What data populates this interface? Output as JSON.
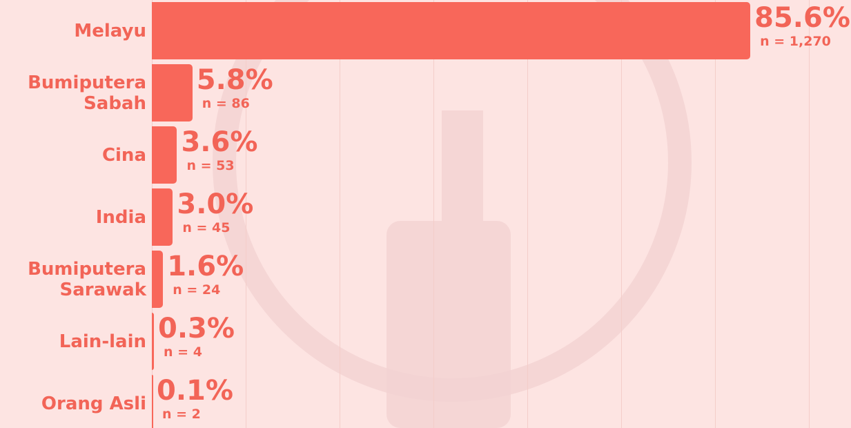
{
  "chart_data": {
    "type": "bar",
    "orientation": "horizontal",
    "categories": [
      "Melayu",
      "Bumiputera Sabah",
      "Cina",
      "India",
      "Bumiputera Sarawak",
      "Lain-lain",
      "Orang Asli"
    ],
    "values": [
      85.6,
      5.8,
      3.6,
      3.0,
      1.6,
      0.3,
      0.1
    ],
    "value_labels": [
      "85.6%",
      "5.8%",
      "3.6%",
      "3.0%",
      "1.6%",
      "0.3%",
      "0.1%"
    ],
    "count_labels": [
      "n = 1,270",
      "n = 86",
      "n = 53",
      "n = 45",
      "n = 24",
      "n = 4",
      "n = 2"
    ],
    "color": "#f8675a",
    "xlim": [
      0,
      100
    ]
  }
}
